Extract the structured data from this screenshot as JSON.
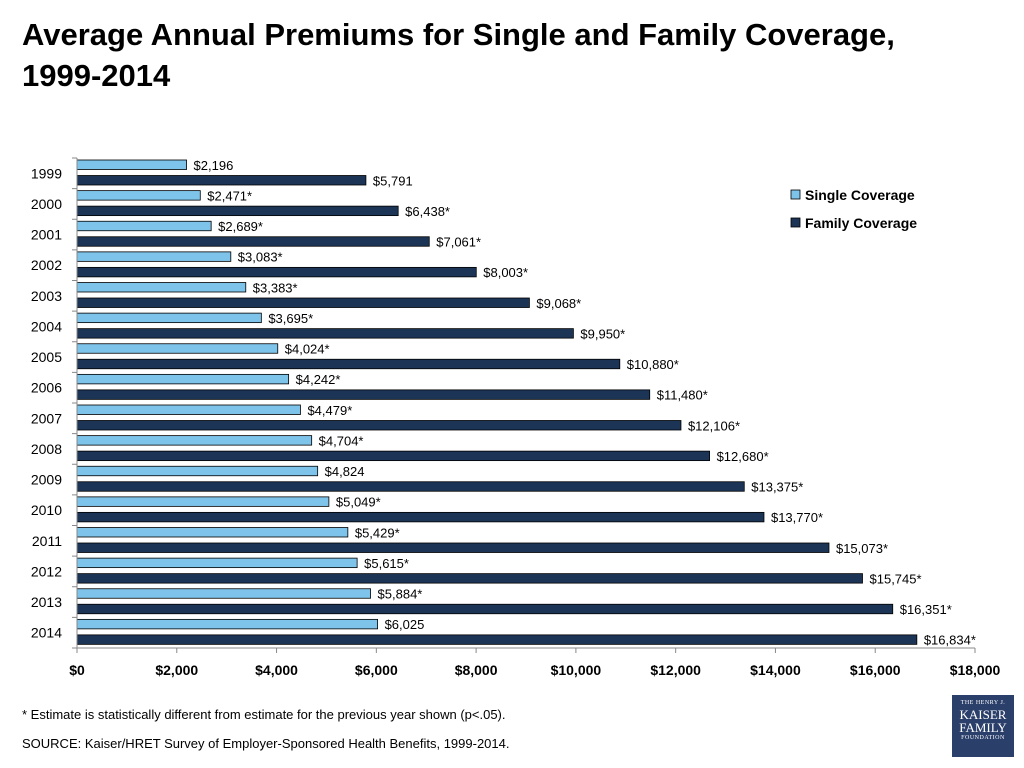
{
  "title": "Average Annual Premiums for Single and Family Coverage, 1999-2014",
  "footnote": "* Estimate is statistically different from estimate for the previous year shown (p<.05).",
  "source": "SOURCE:  Kaiser/HRET Survey of Employer-Sponsored Health Benefits, 1999-2014.",
  "logo": {
    "line1": "THE HENRY J.",
    "line2": "KAISER",
    "line3": "FAMILY",
    "line4": "FOUNDATION"
  },
  "chart_data": {
    "type": "bar",
    "orientation": "horizontal",
    "title": "Average Annual Premiums for Single and Family Coverage, 1999-2014",
    "categories": [
      "1999",
      "2000",
      "2001",
      "2002",
      "2003",
      "2004",
      "2005",
      "2006",
      "2007",
      "2008",
      "2009",
      "2010",
      "2011",
      "2012",
      "2013",
      "2014"
    ],
    "series": [
      {
        "name": "Single Coverage",
        "color": "#7ec3ea",
        "values": [
          2196,
          2471,
          2689,
          3083,
          3383,
          3695,
          4024,
          4242,
          4479,
          4704,
          4824,
          5049,
          5429,
          5615,
          5884,
          6025
        ],
        "labels": [
          "$2,196",
          "$2,471*",
          "$2,689*",
          "$3,083*",
          "$3,383*",
          "$3,695*",
          "$4,024*",
          "$4,242*",
          "$4,479*",
          "$4,704*",
          "$4,824",
          "$5,049*",
          "$5,429*",
          "$5,615*",
          "$5,884*",
          "$6,025"
        ]
      },
      {
        "name": "Family Coverage",
        "color": "#1c3557",
        "values": [
          5791,
          6438,
          7061,
          8003,
          9068,
          9950,
          10880,
          11480,
          12106,
          12680,
          13375,
          13770,
          15073,
          15745,
          16351,
          16834
        ],
        "labels": [
          "$5,791",
          "$6,438*",
          "$7,061*",
          "$8,003*",
          "$9,068*",
          "$9,950*",
          "$10,880*",
          "$11,480*",
          "$12,106*",
          "$12,680*",
          "$13,375*",
          "$13,770*",
          "$15,073*",
          "$15,745*",
          "$16,351*",
          "$16,834*"
        ]
      }
    ],
    "xlim": [
      0,
      18000
    ],
    "xticks": [
      0,
      2000,
      4000,
      6000,
      8000,
      10000,
      12000,
      14000,
      16000,
      18000
    ],
    "xtick_labels": [
      "$0",
      "$2,000",
      "$4,000",
      "$6,000",
      "$8,000",
      "$10,000",
      "$12,000",
      "$14,000",
      "$16,000",
      "$18,000"
    ],
    "legend_position": "top-right",
    "grid": false,
    "xlabel": "",
    "ylabel": ""
  }
}
